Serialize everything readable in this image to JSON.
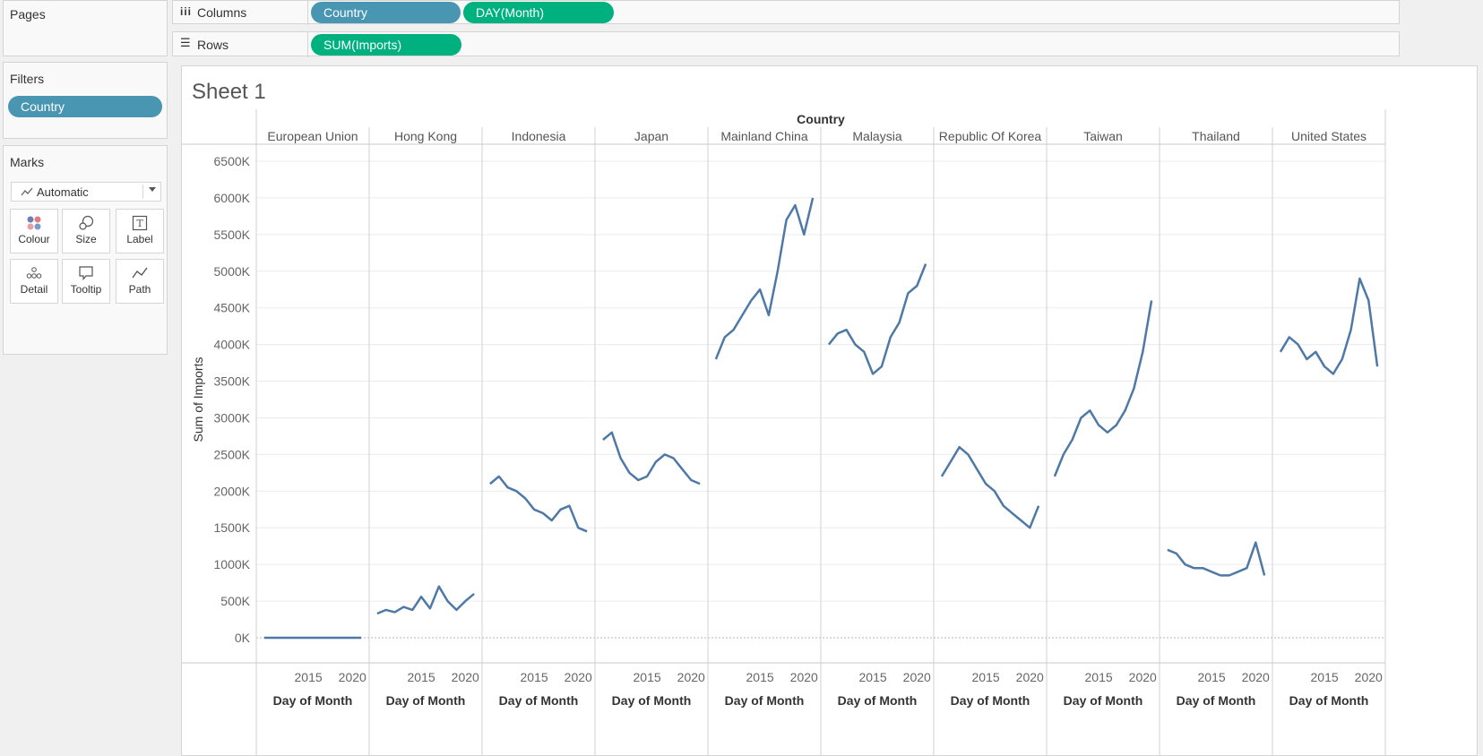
{
  "pages": {
    "title": "Pages"
  },
  "shelves": {
    "columns_label": "Columns",
    "rows_label": "Rows",
    "columns_pills": [
      "Country",
      "DAY(Month)"
    ],
    "rows_pills": [
      "SUM(Imports)"
    ]
  },
  "filters": {
    "title": "Filters",
    "pills": [
      "Country"
    ]
  },
  "marks": {
    "title": "Marks",
    "type": "Automatic",
    "buttons": [
      "Colour",
      "Size",
      "Label",
      "Detail",
      "Tooltip",
      "Path"
    ]
  },
  "sheet": {
    "title": "Sheet 1"
  },
  "chart_data": {
    "type": "line",
    "column_header": "Country",
    "facets": [
      "European Union",
      "Hong Kong",
      "Indonesia",
      "Japan",
      "Mainland China",
      "Malaysia",
      "Republic Of Korea",
      "Taiwan",
      "Thailand",
      "United States"
    ],
    "ylabel": "Sum of Imports",
    "xlabel": "Day of Month",
    "x_ticks": [
      "2015",
      "2020"
    ],
    "y_ticks": [
      "0K",
      "500K",
      "1000K",
      "1500K",
      "2000K",
      "2500K",
      "3000K",
      "3500K",
      "4000K",
      "4500K",
      "5000K",
      "5500K",
      "6000K",
      "6500K"
    ],
    "ylim": [
      0,
      6500
    ],
    "xlim": [
      2009.5,
      2021.5
    ],
    "grid": true,
    "line_color": "#4e79a7",
    "series": [
      {
        "name": "European Union",
        "x": [
          2010,
          2012,
          2014,
          2016,
          2018,
          2020,
          2021
        ],
        "values": [
          0,
          0,
          0,
          0,
          0,
          0,
          0
        ]
      },
      {
        "name": "Hong Kong",
        "x": [
          2010,
          2011,
          2012,
          2013,
          2014,
          2015,
          2016,
          2017,
          2018,
          2019,
          2020,
          2021
        ],
        "values": [
          330,
          380,
          350,
          420,
          380,
          560,
          400,
          700,
          500,
          380,
          500,
          600
        ]
      },
      {
        "name": "Indonesia",
        "x": [
          2010,
          2011,
          2012,
          2013,
          2014,
          2015,
          2016,
          2017,
          2018,
          2019,
          2020,
          2021
        ],
        "values": [
          2100,
          2200,
          2050,
          2000,
          1900,
          1750,
          1700,
          1600,
          1750,
          1800,
          1500,
          1450
        ]
      },
      {
        "name": "Japan",
        "x": [
          2010,
          2011,
          2012,
          2013,
          2014,
          2015,
          2016,
          2017,
          2018,
          2019,
          2020,
          2021
        ],
        "values": [
          2700,
          2800,
          2450,
          2250,
          2150,
          2200,
          2400,
          2500,
          2450,
          2300,
          2150,
          2100
        ]
      },
      {
        "name": "Mainland China",
        "x": [
          2010,
          2011,
          2012,
          2013,
          2014,
          2015,
          2016,
          2017,
          2018,
          2019,
          2020,
          2021
        ],
        "values": [
          3800,
          4100,
          4200,
          4400,
          4600,
          4750,
          4400,
          5000,
          5700,
          5900,
          5500,
          6000
        ]
      },
      {
        "name": "Malaysia",
        "x": [
          2010,
          2011,
          2012,
          2013,
          2014,
          2015,
          2016,
          2017,
          2018,
          2019,
          2020,
          2021
        ],
        "values": [
          4000,
          4150,
          4200,
          4000,
          3900,
          3600,
          3700,
          4100,
          4300,
          4700,
          4800,
          5100
        ]
      },
      {
        "name": "Republic Of Korea",
        "x": [
          2010,
          2011,
          2012,
          2013,
          2014,
          2015,
          2016,
          2017,
          2018,
          2019,
          2020,
          2021
        ],
        "values": [
          2200,
          2400,
          2600,
          2500,
          2300,
          2100,
          2000,
          1800,
          1700,
          1600,
          1500,
          1800
        ]
      },
      {
        "name": "Taiwan",
        "x": [
          2010,
          2011,
          2012,
          2013,
          2014,
          2015,
          2016,
          2017,
          2018,
          2019,
          2020,
          2021
        ],
        "values": [
          2200,
          2500,
          2700,
          3000,
          3100,
          2900,
          2800,
          2900,
          3100,
          3400,
          3900,
          4600
        ]
      },
      {
        "name": "Thailand",
        "x": [
          2010,
          2011,
          2012,
          2013,
          2014,
          2015,
          2016,
          2017,
          2018,
          2019,
          2020,
          2021
        ],
        "values": [
          1200,
          1150,
          1000,
          950,
          950,
          900,
          850,
          850,
          900,
          950,
          1300,
          850
        ]
      },
      {
        "name": "United States",
        "x": [
          2010,
          2011,
          2012,
          2013,
          2014,
          2015,
          2016,
          2017,
          2018,
          2019,
          2020,
          2021
        ],
        "values": [
          3900,
          4100,
          4000,
          3800,
          3900,
          3700,
          3600,
          3800,
          4200,
          4900,
          4600,
          3700
        ]
      }
    ]
  }
}
